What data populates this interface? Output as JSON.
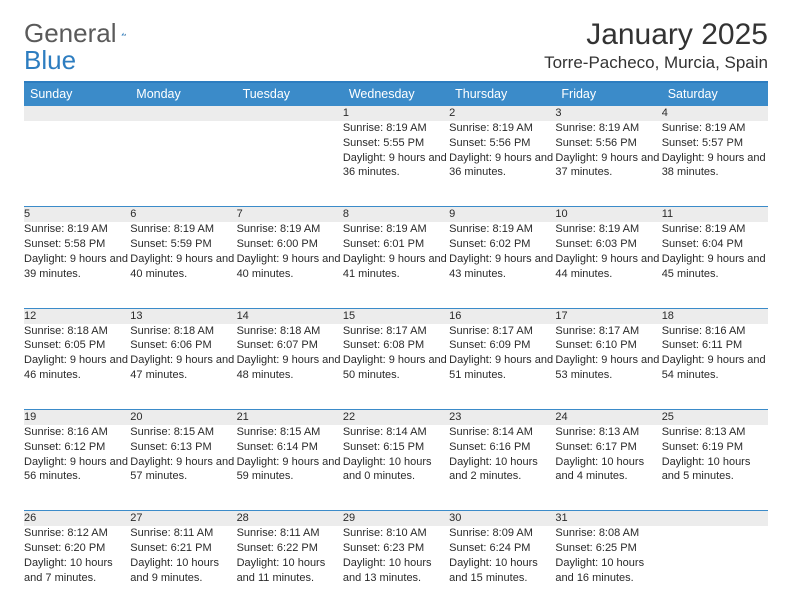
{
  "brand": {
    "name1": "General",
    "name2": "Blue"
  },
  "title": "January 2025",
  "location": "Torre-Pacheco, Murcia, Spain",
  "colors": {
    "header_bg": "#3b8bc9",
    "header_border": "#2d7dc0",
    "daynum_bg": "#ececec",
    "text": "#2a2a2a",
    "page_bg": "#ffffff"
  },
  "dayNames": [
    "Sunday",
    "Monday",
    "Tuesday",
    "Wednesday",
    "Thursday",
    "Friday",
    "Saturday"
  ],
  "weeks": [
    [
      null,
      null,
      null,
      {
        "n": "1",
        "sr": "8:19 AM",
        "ss": "5:55 PM",
        "dl": "9 hours and 36 minutes."
      },
      {
        "n": "2",
        "sr": "8:19 AM",
        "ss": "5:56 PM",
        "dl": "9 hours and 36 minutes."
      },
      {
        "n": "3",
        "sr": "8:19 AM",
        "ss": "5:56 PM",
        "dl": "9 hours and 37 minutes."
      },
      {
        "n": "4",
        "sr": "8:19 AM",
        "ss": "5:57 PM",
        "dl": "9 hours and 38 minutes."
      }
    ],
    [
      {
        "n": "5",
        "sr": "8:19 AM",
        "ss": "5:58 PM",
        "dl": "9 hours and 39 minutes."
      },
      {
        "n": "6",
        "sr": "8:19 AM",
        "ss": "5:59 PM",
        "dl": "9 hours and 40 minutes."
      },
      {
        "n": "7",
        "sr": "8:19 AM",
        "ss": "6:00 PM",
        "dl": "9 hours and 40 minutes."
      },
      {
        "n": "8",
        "sr": "8:19 AM",
        "ss": "6:01 PM",
        "dl": "9 hours and 41 minutes."
      },
      {
        "n": "9",
        "sr": "8:19 AM",
        "ss": "6:02 PM",
        "dl": "9 hours and 43 minutes."
      },
      {
        "n": "10",
        "sr": "8:19 AM",
        "ss": "6:03 PM",
        "dl": "9 hours and 44 minutes."
      },
      {
        "n": "11",
        "sr": "8:19 AM",
        "ss": "6:04 PM",
        "dl": "9 hours and 45 minutes."
      }
    ],
    [
      {
        "n": "12",
        "sr": "8:18 AM",
        "ss": "6:05 PM",
        "dl": "9 hours and 46 minutes."
      },
      {
        "n": "13",
        "sr": "8:18 AM",
        "ss": "6:06 PM",
        "dl": "9 hours and 47 minutes."
      },
      {
        "n": "14",
        "sr": "8:18 AM",
        "ss": "6:07 PM",
        "dl": "9 hours and 48 minutes."
      },
      {
        "n": "15",
        "sr": "8:17 AM",
        "ss": "6:08 PM",
        "dl": "9 hours and 50 minutes."
      },
      {
        "n": "16",
        "sr": "8:17 AM",
        "ss": "6:09 PM",
        "dl": "9 hours and 51 minutes."
      },
      {
        "n": "17",
        "sr": "8:17 AM",
        "ss": "6:10 PM",
        "dl": "9 hours and 53 minutes."
      },
      {
        "n": "18",
        "sr": "8:16 AM",
        "ss": "6:11 PM",
        "dl": "9 hours and 54 minutes."
      }
    ],
    [
      {
        "n": "19",
        "sr": "8:16 AM",
        "ss": "6:12 PM",
        "dl": "9 hours and 56 minutes."
      },
      {
        "n": "20",
        "sr": "8:15 AM",
        "ss": "6:13 PM",
        "dl": "9 hours and 57 minutes."
      },
      {
        "n": "21",
        "sr": "8:15 AM",
        "ss": "6:14 PM",
        "dl": "9 hours and 59 minutes."
      },
      {
        "n": "22",
        "sr": "8:14 AM",
        "ss": "6:15 PM",
        "dl": "10 hours and 0 minutes."
      },
      {
        "n": "23",
        "sr": "8:14 AM",
        "ss": "6:16 PM",
        "dl": "10 hours and 2 minutes."
      },
      {
        "n": "24",
        "sr": "8:13 AM",
        "ss": "6:17 PM",
        "dl": "10 hours and 4 minutes."
      },
      {
        "n": "25",
        "sr": "8:13 AM",
        "ss": "6:19 PM",
        "dl": "10 hours and 5 minutes."
      }
    ],
    [
      {
        "n": "26",
        "sr": "8:12 AM",
        "ss": "6:20 PM",
        "dl": "10 hours and 7 minutes."
      },
      {
        "n": "27",
        "sr": "8:11 AM",
        "ss": "6:21 PM",
        "dl": "10 hours and 9 minutes."
      },
      {
        "n": "28",
        "sr": "8:11 AM",
        "ss": "6:22 PM",
        "dl": "10 hours and 11 minutes."
      },
      {
        "n": "29",
        "sr": "8:10 AM",
        "ss": "6:23 PM",
        "dl": "10 hours and 13 minutes."
      },
      {
        "n": "30",
        "sr": "8:09 AM",
        "ss": "6:24 PM",
        "dl": "10 hours and 15 minutes."
      },
      {
        "n": "31",
        "sr": "8:08 AM",
        "ss": "6:25 PM",
        "dl": "10 hours and 16 minutes."
      },
      null
    ]
  ],
  "labels": {
    "sunrise": "Sunrise:",
    "sunset": "Sunset:",
    "daylight": "Daylight:"
  }
}
